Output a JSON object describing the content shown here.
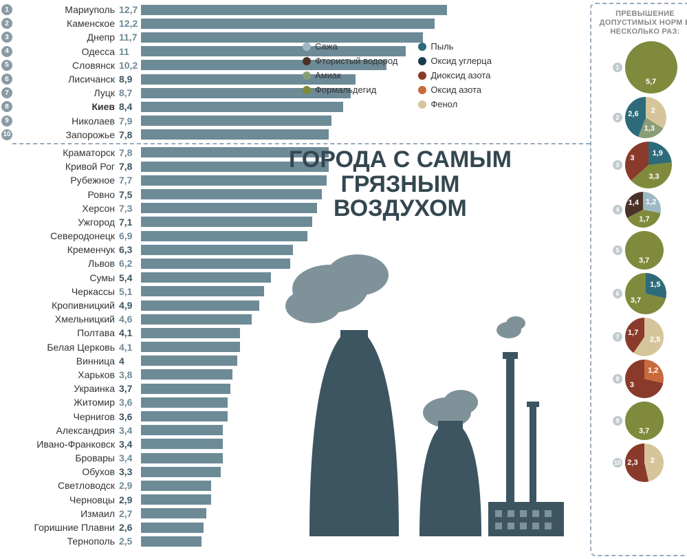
{
  "title_l1": "ГОРОДА С САМЫМ",
  "title_l2": "ГРЯЗНЫМ",
  "title_l3": "ВОЗДУХОМ",
  "right_title": "ПРЕВЫШЕНИЕ ДОПУСТИМЫХ НОРМ В НЕСКОЛЬКО РАЗ:",
  "colors": {
    "bar": "#6d8a97",
    "bar_badge": "#8a9ba3",
    "val": "#6d8a97",
    "val_dark": "#3d5561",
    "sazha": "#9cb9c4",
    "ftor": "#4a3228",
    "amiak": "#8a9d76",
    "formal": "#808a3d",
    "pyl": "#2d6b7a",
    "oksid_ugl": "#1a3d4d",
    "dioksid_az": "#8a3a2a",
    "oksid_az": "#c96a3d",
    "fenol": "#d6c59a",
    "title": "#344750",
    "smoke": "#7f929a",
    "stack": "#3d5561"
  },
  "bar_scale": 35,
  "legend": [
    [
      {
        "k": "sazha",
        "l": "Сажа"
      },
      {
        "k": "ftor",
        "l": "Фтористый водород"
      },
      {
        "k": "amiak",
        "l": "Амиак"
      },
      {
        "k": "formal",
        "l": "Формальдегид"
      }
    ],
    [
      {
        "k": "pyl",
        "l": "Пыль"
      },
      {
        "k": "oksid_ugl",
        "l": "Оксид углерца"
      },
      {
        "k": "dioksid_az",
        "l": "Диоксид азота"
      },
      {
        "k": "oksid_az",
        "l": "Оксид азота"
      },
      {
        "k": "fenol",
        "l": "Фенол"
      }
    ]
  ],
  "cities": [
    {
      "n": 1,
      "name": "Мариуполь",
      "v": 12.7,
      "d": "12,7"
    },
    {
      "n": 2,
      "name": "Каменское",
      "v": 12.2,
      "d": "12,2"
    },
    {
      "n": 3,
      "name": "Днепр",
      "v": 11.7,
      "d": "11,7"
    },
    {
      "n": 4,
      "name": "Одесса",
      "v": 11,
      "d": "11"
    },
    {
      "n": 5,
      "name": "Словянск",
      "v": 10.2,
      "d": "10,2"
    },
    {
      "n": 6,
      "name": "Лисичанск",
      "v": 8.9,
      "d": "8,9",
      "dark": true
    },
    {
      "n": 7,
      "name": "Луцк",
      "v": 8.7,
      "d": "8,7"
    },
    {
      "n": 8,
      "name": "Киев",
      "v": 8.4,
      "d": "8,4",
      "bold": true,
      "dark": true
    },
    {
      "n": 9,
      "name": "Николаев",
      "v": 7.9,
      "d": "7,9"
    },
    {
      "n": 10,
      "name": "Запорожье",
      "v": 7.8,
      "d": "7,8",
      "dark": true
    },
    {
      "name": "Краматорск",
      "v": 7.8,
      "d": "7,8"
    },
    {
      "name": "Кривой Рог",
      "v": 7.8,
      "d": "7,8",
      "dark": true
    },
    {
      "name": "Рубежное",
      "v": 7.7,
      "d": "7,7"
    },
    {
      "name": "Ровно",
      "v": 7.5,
      "d": "7,5",
      "dark": true
    },
    {
      "name": "Херсон",
      "v": 7.3,
      "d": "7,3"
    },
    {
      "name": "Ужгород",
      "v": 7.1,
      "d": "7,1",
      "dark": true
    },
    {
      "name": "Северодонецк",
      "v": 6.9,
      "d": "6,9"
    },
    {
      "name": "Кременчук",
      "v": 6.3,
      "d": "6,3",
      "dark": true
    },
    {
      "name": "Львов",
      "v": 6.2,
      "d": "6,2"
    },
    {
      "name": "Сумы",
      "v": 5.4,
      "d": "5,4",
      "dark": true
    },
    {
      "name": "Черкассы",
      "v": 5.1,
      "d": "5,1"
    },
    {
      "name": "Кропивницкий",
      "v": 4.9,
      "d": "4,9",
      "dark": true
    },
    {
      "name": "Хмельницкий",
      "v": 4.6,
      "d": "4,6"
    },
    {
      "name": "Полтава",
      "v": 4.1,
      "d": "4,1",
      "dark": true
    },
    {
      "name": "Белая Церковь",
      "v": 4.1,
      "d": "4,1"
    },
    {
      "name": "Винница",
      "v": 4,
      "d": "4",
      "dark": true
    },
    {
      "name": "Харьков",
      "v": 3.8,
      "d": "3,8"
    },
    {
      "name": "Украинка",
      "v": 3.7,
      "d": "3,7",
      "dark": true
    },
    {
      "name": "Житомир",
      "v": 3.6,
      "d": "3,6"
    },
    {
      "name": "Чернигов",
      "v": 3.6,
      "d": "3,6",
      "dark": true
    },
    {
      "name": "Александрия",
      "v": 3.4,
      "d": "3,4"
    },
    {
      "name": "Ивано-Франковск",
      "v": 3.4,
      "d": "3,4",
      "dark": true
    },
    {
      "name": "Бровары",
      "v": 3.4,
      "d": "3,4"
    },
    {
      "name": "Обухов",
      "v": 3.3,
      "d": "3,3",
      "dark": true
    },
    {
      "name": "Светловодск",
      "v": 2.9,
      "d": "2,9"
    },
    {
      "name": "Черновцы",
      "v": 2.9,
      "d": "2,9",
      "dark": true
    },
    {
      "name": "Измаил",
      "v": 2.7,
      "d": "2,7"
    },
    {
      "name": "Горишние Плавни",
      "v": 2.6,
      "d": "2,6",
      "dark": true
    },
    {
      "name": "Тернополь",
      "v": 2.5,
      "d": "2,5"
    }
  ],
  "pies": [
    {
      "n": 1,
      "r": 38,
      "slices": [
        {
          "c": "formal",
          "v": 5.7,
          "l": "5,7"
        }
      ]
    },
    {
      "n": 2,
      "r": 30,
      "slices": [
        {
          "c": "fenol",
          "v": 2,
          "l": "2"
        },
        {
          "c": "amiak",
          "v": 1.3,
          "l": "1,3"
        },
        {
          "c": "pyl",
          "v": 2.6,
          "l": "2,6"
        }
      ]
    },
    {
      "n": 3,
      "r": 34,
      "slices": [
        {
          "c": "pyl",
          "v": 1.9,
          "l": "1,9"
        },
        {
          "c": "formal",
          "v": 3.3,
          "l": "3,3"
        },
        {
          "c": "dioksid_az",
          "v": 3,
          "l": "3"
        }
      ]
    },
    {
      "n": 4,
      "r": 26,
      "slices": [
        {
          "c": "sazha",
          "v": 1.2,
          "l": "1,2"
        },
        {
          "c": "formal",
          "v": 1.7,
          "l": "1,7"
        },
        {
          "c": "ftor",
          "v": 1.4,
          "l": "1,4"
        }
      ]
    },
    {
      "n": 5,
      "r": 28,
      "slices": [
        {
          "c": "formal",
          "v": 3.7,
          "l": "3,7"
        }
      ]
    },
    {
      "n": 6,
      "r": 30,
      "slices": [
        {
          "c": "pyl",
          "v": 1.5,
          "l": "1,5"
        },
        {
          "c": "formal",
          "v": 3.7,
          "l": "3,7"
        }
      ]
    },
    {
      "n": 7,
      "r": 28,
      "slices": [
        {
          "c": "fenol",
          "v": 2.5,
          "l": "2,5"
        },
        {
          "c": "dioksid_az",
          "v": 1.7,
          "l": "1,7"
        }
      ]
    },
    {
      "n": 8,
      "r": 28,
      "slices": [
        {
          "c": "oksid_az",
          "v": 1.2,
          "l": "1,2"
        },
        {
          "c": "dioksid_az",
          "v": 3,
          "l": "3"
        }
      ]
    },
    {
      "n": 9,
      "r": 28,
      "slices": [
        {
          "c": "formal",
          "v": 3.7,
          "l": "3,7"
        }
      ]
    },
    {
      "n": 10,
      "r": 28,
      "slices": [
        {
          "c": "fenol",
          "v": 2,
          "l": "2"
        },
        {
          "c": "dioksid_az",
          "v": 2.3,
          "l": "2,3"
        }
      ]
    }
  ]
}
